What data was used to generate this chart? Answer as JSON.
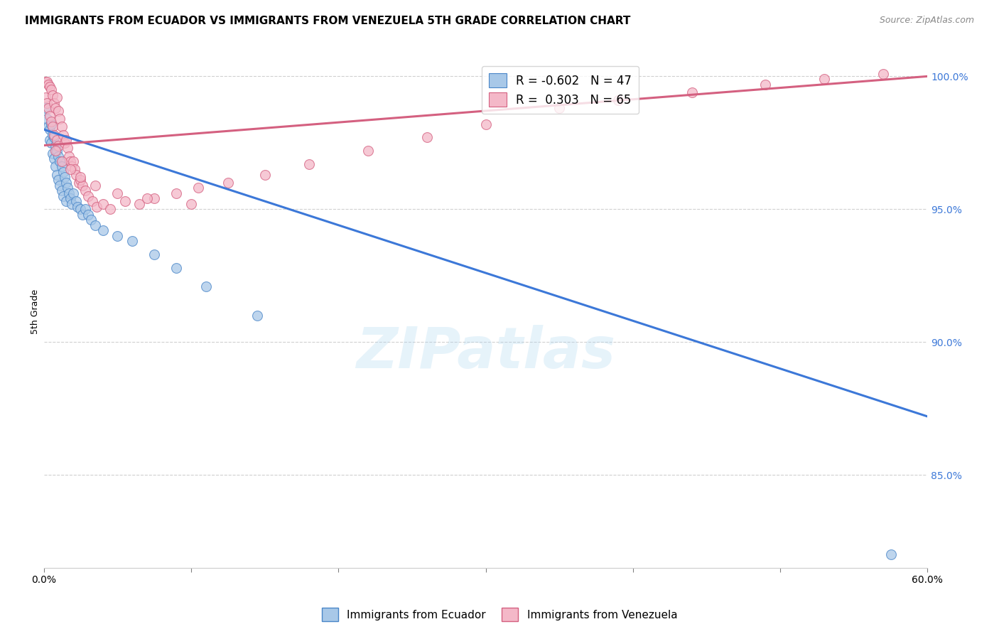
{
  "title": "IMMIGRANTS FROM ECUADOR VS IMMIGRANTS FROM VENEZUELA 5TH GRADE CORRELATION CHART",
  "source": "Source: ZipAtlas.com",
  "ylabel": "5th Grade",
  "xlim": [
    0.0,
    0.6
  ],
  "ylim": [
    0.815,
    1.008
  ],
  "xticks": [
    0.0,
    0.1,
    0.2,
    0.3,
    0.4,
    0.5,
    0.6
  ],
  "xtick_labels": [
    "0.0%",
    "",
    "",
    "",
    "",
    "",
    "60.0%"
  ],
  "ytick_vals_right": [
    1.0,
    0.95,
    0.9,
    0.85
  ],
  "ytick_labels_right": [
    "100.0%",
    "95.0%",
    "90.0%",
    "85.0%"
  ],
  "legend_blue_label": "R = -0.602   N = 47",
  "legend_pink_label": "R =  0.303   N = 65",
  "watermark": "ZIPatlas",
  "blue_color": "#a8c8e8",
  "pink_color": "#f4b8c8",
  "blue_edge_color": "#4a86c8",
  "pink_edge_color": "#d46080",
  "blue_line_color": "#3c78d8",
  "pink_line_color": "#d46080",
  "ecuador_x": [
    0.001,
    0.002,
    0.003,
    0.004,
    0.004,
    0.005,
    0.005,
    0.006,
    0.006,
    0.007,
    0.007,
    0.008,
    0.008,
    0.009,
    0.009,
    0.01,
    0.01,
    0.011,
    0.011,
    0.012,
    0.012,
    0.013,
    0.013,
    0.014,
    0.015,
    0.015,
    0.016,
    0.017,
    0.018,
    0.019,
    0.02,
    0.022,
    0.023,
    0.025,
    0.026,
    0.028,
    0.03,
    0.032,
    0.035,
    0.04,
    0.05,
    0.06,
    0.075,
    0.09,
    0.11,
    0.145,
    0.575
  ],
  "ecuador_y": [
    0.988,
    0.984,
    0.981,
    0.98,
    0.976,
    0.982,
    0.975,
    0.978,
    0.971,
    0.977,
    0.969,
    0.974,
    0.966,
    0.972,
    0.963,
    0.97,
    0.961,
    0.968,
    0.959,
    0.966,
    0.957,
    0.964,
    0.955,
    0.962,
    0.96,
    0.953,
    0.958,
    0.956,
    0.954,
    0.952,
    0.956,
    0.953,
    0.951,
    0.95,
    0.948,
    0.95,
    0.948,
    0.946,
    0.944,
    0.942,
    0.94,
    0.938,
    0.933,
    0.928,
    0.921,
    0.91,
    0.82
  ],
  "venezuela_x": [
    0.001,
    0.001,
    0.002,
    0.002,
    0.003,
    0.003,
    0.004,
    0.004,
    0.005,
    0.005,
    0.006,
    0.006,
    0.007,
    0.007,
    0.008,
    0.009,
    0.009,
    0.01,
    0.01,
    0.011,
    0.012,
    0.013,
    0.014,
    0.015,
    0.016,
    0.017,
    0.018,
    0.019,
    0.02,
    0.021,
    0.022,
    0.024,
    0.025,
    0.026,
    0.028,
    0.03,
    0.033,
    0.036,
    0.04,
    0.045,
    0.055,
    0.065,
    0.075,
    0.09,
    0.105,
    0.125,
    0.15,
    0.18,
    0.22,
    0.26,
    0.3,
    0.35,
    0.39,
    0.44,
    0.49,
    0.53,
    0.57,
    0.008,
    0.012,
    0.018,
    0.025,
    0.035,
    0.05,
    0.07,
    0.1
  ],
  "venezuela_y": [
    0.998,
    0.992,
    0.998,
    0.99,
    0.997,
    0.988,
    0.996,
    0.985,
    0.995,
    0.983,
    0.993,
    0.981,
    0.99,
    0.978,
    0.988,
    0.992,
    0.976,
    0.987,
    0.974,
    0.984,
    0.981,
    0.978,
    0.975,
    0.976,
    0.973,
    0.97,
    0.968,
    0.966,
    0.968,
    0.965,
    0.963,
    0.96,
    0.961,
    0.959,
    0.957,
    0.955,
    0.953,
    0.951,
    0.952,
    0.95,
    0.953,
    0.952,
    0.954,
    0.956,
    0.958,
    0.96,
    0.963,
    0.967,
    0.972,
    0.977,
    0.982,
    0.988,
    0.991,
    0.994,
    0.997,
    0.999,
    1.001,
    0.972,
    0.968,
    0.965,
    0.962,
    0.959,
    0.956,
    0.954,
    0.952
  ],
  "blue_trend_x": [
    0.0,
    0.6
  ],
  "blue_trend_y": [
    0.98,
    0.872
  ],
  "pink_trend_x": [
    0.0,
    0.6
  ],
  "pink_trend_y": [
    0.974,
    1.0
  ],
  "title_fontsize": 11,
  "axis_label_fontsize": 9,
  "tick_fontsize": 10,
  "legend_fontsize": 12
}
